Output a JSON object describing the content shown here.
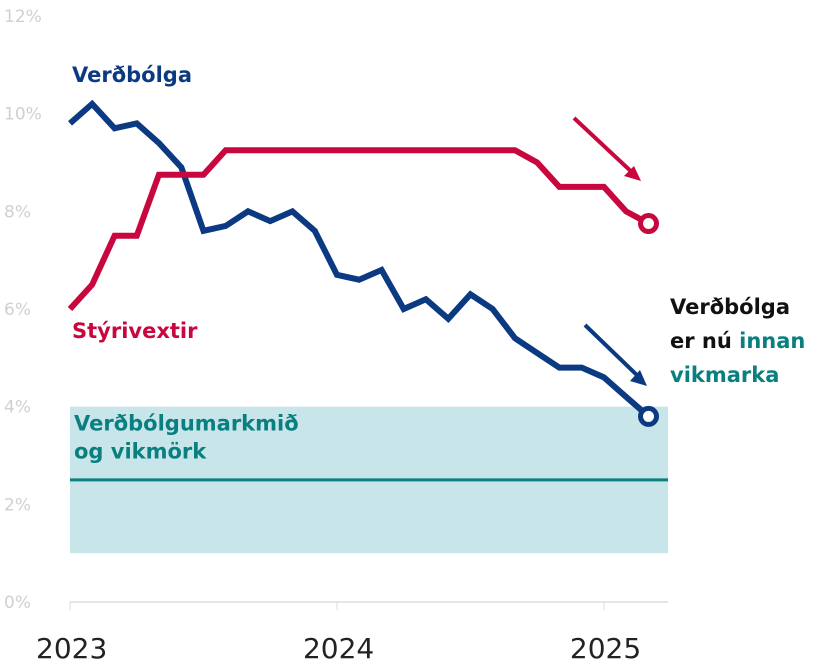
{
  "chart_data": {
    "type": "line",
    "x": [
      2023,
      2023.083,
      2023.167,
      2023.25,
      2023.333,
      2023.417,
      2023.5,
      2023.583,
      2023.667,
      2023.75,
      2023.833,
      2023.917,
      2024,
      2024.083,
      2024.167,
      2024.25,
      2024.333,
      2024.417,
      2024.5,
      2024.583,
      2024.667,
      2024.75,
      2024.833,
      2024.917,
      2025,
      2025.083,
      2025.167
    ],
    "series": [
      {
        "name": "Verðbólga",
        "color": "#0b3a82",
        "values": [
          9.8,
          10.2,
          9.7,
          9.8,
          9.4,
          8.9,
          7.6,
          7.7,
          8.0,
          7.8,
          8.0,
          7.6,
          6.7,
          6.6,
          6.8,
          6.0,
          6.2,
          5.8,
          6.3,
          6.0,
          5.4,
          5.1,
          4.8,
          4.8,
          4.6,
          4.2,
          3.8
        ]
      },
      {
        "name": "Stýrivextir",
        "color": "#c8073f",
        "values": [
          6.0,
          6.5,
          7.5,
          7.5,
          8.75,
          8.75,
          8.75,
          9.25,
          9.25,
          9.25,
          9.25,
          9.25,
          9.25,
          9.25,
          9.25,
          9.25,
          9.25,
          9.25,
          9.25,
          9.25,
          9.25,
          9.0,
          8.5,
          8.5,
          8.5,
          8.0,
          7.75
        ]
      }
    ],
    "xlim": [
      2023,
      2025.24
    ],
    "xticks": [
      2023,
      2024,
      2025
    ],
    "ylim": [
      0,
      12
    ],
    "yticks": [
      {
        "value": 0,
        "label": "0%"
      },
      {
        "value": 2,
        "label": "2%"
      },
      {
        "value": 4,
        "label": "4%"
      },
      {
        "value": 6,
        "label": "6%"
      },
      {
        "value": 8,
        "label": "8%"
      },
      {
        "value": 10,
        "label": "10%"
      },
      {
        "value": 12,
        "label": "12%"
      }
    ],
    "band": {
      "range": [
        1,
        4
      ],
      "target": 2.5,
      "color": "#c8e6ea",
      "line_color": "#0a7f80",
      "label": [
        "Verðbólgumarkmið",
        "og vikmörk"
      ]
    },
    "annotation": [
      "Verðbólga",
      "er nú ",
      "innan",
      "vikmarka"
    ]
  }
}
